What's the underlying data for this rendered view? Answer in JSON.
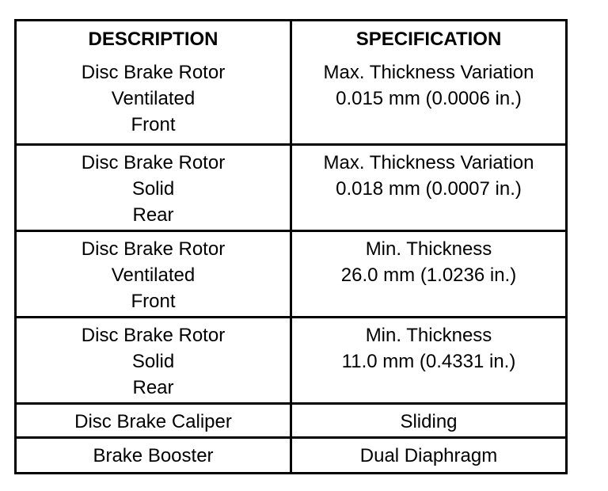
{
  "headers": {
    "description": "DESCRIPTION",
    "specification": "SPECIFICATION"
  },
  "rows": [
    {
      "description": [
        "Disc Brake Rotor",
        "Ventilated",
        "Front"
      ],
      "specification": [
        "Max. Thickness Variation",
        "0.015 mm (0.0006 in.)"
      ]
    },
    {
      "description": [
        "Disc Brake Rotor",
        "Solid",
        "Rear"
      ],
      "specification": [
        "Max. Thickness Variation",
        "0.018 mm (0.0007 in.)"
      ]
    },
    {
      "description": [
        "Disc Brake Rotor",
        "Ventilated",
        "Front"
      ],
      "specification": [
        "Min. Thickness",
        "26.0 mm (1.0236 in.)"
      ]
    },
    {
      "description": [
        "Disc Brake Rotor",
        "Solid",
        "Rear"
      ],
      "specification": [
        "Min. Thickness",
        "11.0 mm (0.4331 in.)"
      ]
    },
    {
      "description": [
        "Disc Brake Caliper"
      ],
      "specification": [
        "Sliding"
      ]
    },
    {
      "description": [
        "Brake Booster"
      ],
      "specification": [
        "Dual Diaphragm"
      ]
    }
  ]
}
